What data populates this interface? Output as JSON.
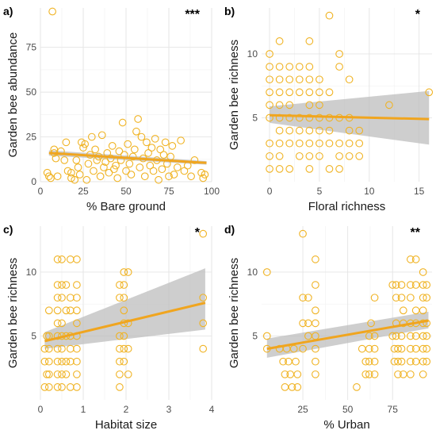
{
  "chart_data": [
    {
      "panel": "a)",
      "type": "scatter",
      "xlabel": "% Bare ground",
      "ylabel": "Garden bee abundance",
      "xlim": [
        0,
        100
      ],
      "ylim": [
        0,
        97
      ],
      "xticks": [
        0,
        25,
        50,
        75,
        100
      ],
      "yticks": [
        0,
        25,
        50,
        75
      ],
      "significance": "***",
      "trend": {
        "x": [
          5,
          97
        ],
        "y": [
          16,
          10.5
        ],
        "ci_low": [
          14.5,
          9.5
        ],
        "ci_high": [
          17.5,
          11.5
        ]
      },
      "points": [
        [
          7,
          95
        ],
        [
          4,
          5
        ],
        [
          5,
          3
        ],
        [
          6,
          2
        ],
        [
          8,
          16
        ],
        [
          8,
          18
        ],
        [
          9,
          13
        ],
        [
          10,
          3
        ],
        [
          12,
          17
        ],
        [
          14,
          12
        ],
        [
          15,
          22
        ],
        [
          16,
          6
        ],
        [
          18,
          5
        ],
        [
          18,
          2
        ],
        [
          20,
          1
        ],
        [
          21,
          12
        ],
        [
          22,
          8
        ],
        [
          23,
          4
        ],
        [
          24,
          22
        ],
        [
          25,
          19
        ],
        [
          26,
          21
        ],
        [
          27,
          1
        ],
        [
          28,
          10
        ],
        [
          29,
          15
        ],
        [
          30,
          25
        ],
        [
          31,
          6
        ],
        [
          32,
          18
        ],
        [
          33,
          12
        ],
        [
          34,
          14
        ],
        [
          35,
          3
        ],
        [
          36,
          26
        ],
        [
          37,
          8
        ],
        [
          38,
          11
        ],
        [
          39,
          16
        ],
        [
          40,
          5
        ],
        [
          41,
          13
        ],
        [
          42,
          20
        ],
        [
          43,
          7
        ],
        [
          44,
          9
        ],
        [
          45,
          2
        ],
        [
          46,
          17
        ],
        [
          47,
          12
        ],
        [
          48,
          33
        ],
        [
          49,
          15
        ],
        [
          50,
          6
        ],
        [
          51,
          21
        ],
        [
          52,
          10
        ],
        [
          53,
          4
        ],
        [
          54,
          14
        ],
        [
          55,
          18
        ],
        [
          56,
          28
        ],
        [
          57,
          35
        ],
        [
          58,
          8
        ],
        [
          59,
          25
        ],
        [
          60,
          13
        ],
        [
          61,
          3
        ],
        [
          62,
          22
        ],
        [
          63,
          16
        ],
        [
          64,
          9
        ],
        [
          65,
          19
        ],
        [
          66,
          6
        ],
        [
          67,
          24
        ],
        [
          68,
          12
        ],
        [
          69,
          1
        ],
        [
          70,
          18
        ],
        [
          71,
          7
        ],
        [
          72,
          15
        ],
        [
          73,
          22
        ],
        [
          74,
          10
        ],
        [
          75,
          3
        ],
        [
          76,
          14
        ],
        [
          77,
          20
        ],
        [
          78,
          4
        ],
        [
          80,
          8
        ],
        [
          82,
          23
        ],
        [
          84,
          6
        ],
        [
          86,
          9
        ],
        [
          88,
          3
        ],
        [
          90,
          12
        ],
        [
          94,
          5
        ],
        [
          95,
          2
        ],
        [
          96,
          4
        ]
      ]
    },
    {
      "panel": "b)",
      "type": "scatter",
      "xlabel": "Floral richness",
      "ylabel": "Garden bee richness",
      "xlim": [
        -0.8,
        16.3
      ],
      "ylim": [
        0,
        13.6
      ],
      "xticks": [
        0,
        5,
        10,
        15
      ],
      "yticks": [
        5,
        10
      ],
      "significance": "*",
      "trend": {
        "x": [
          0,
          16
        ],
        "y": [
          5.2,
          4.9
        ],
        "ci_low": [
          4.6,
          2.9
        ],
        "ci_high": [
          5.9,
          7.1
        ]
      },
      "points": [
        [
          0,
          10
        ],
        [
          0,
          9
        ],
        [
          0,
          8
        ],
        [
          0,
          7
        ],
        [
          0,
          6
        ],
        [
          0,
          5
        ],
        [
          0,
          3
        ],
        [
          0,
          2
        ],
        [
          0,
          1
        ],
        [
          1,
          11
        ],
        [
          1,
          9
        ],
        [
          1,
          8
        ],
        [
          1,
          7
        ],
        [
          1,
          6
        ],
        [
          1,
          5
        ],
        [
          1,
          4
        ],
        [
          1,
          3
        ],
        [
          1,
          2
        ],
        [
          1,
          1
        ],
        [
          2,
          9
        ],
        [
          2,
          8
        ],
        [
          2,
          7
        ],
        [
          2,
          6
        ],
        [
          2,
          5
        ],
        [
          2,
          4
        ],
        [
          2,
          3
        ],
        [
          2,
          1
        ],
        [
          3,
          9
        ],
        [
          3,
          8
        ],
        [
          3,
          7
        ],
        [
          3,
          5
        ],
        [
          3,
          4
        ],
        [
          3,
          3
        ],
        [
          3,
          2
        ],
        [
          4,
          11
        ],
        [
          4,
          9
        ],
        [
          4,
          8
        ],
        [
          4,
          7
        ],
        [
          4,
          6
        ],
        [
          4,
          5
        ],
        [
          4,
          4
        ],
        [
          4,
          3
        ],
        [
          4,
          2
        ],
        [
          4,
          1
        ],
        [
          5,
          8
        ],
        [
          5,
          7
        ],
        [
          5,
          6
        ],
        [
          5,
          5
        ],
        [
          5,
          4
        ],
        [
          5,
          3
        ],
        [
          5,
          2
        ],
        [
          6,
          13
        ],
        [
          6,
          7
        ],
        [
          6,
          5
        ],
        [
          6,
          4
        ],
        [
          6,
          3
        ],
        [
          6,
          1
        ],
        [
          7,
          10
        ],
        [
          7,
          9
        ],
        [
          7,
          5
        ],
        [
          7,
          3
        ],
        [
          7,
          2
        ],
        [
          7,
          1
        ],
        [
          8,
          8
        ],
        [
          8,
          5
        ],
        [
          8,
          4
        ],
        [
          8,
          3
        ],
        [
          8,
          2
        ],
        [
          9,
          4
        ],
        [
          9,
          3
        ],
        [
          9,
          2
        ],
        [
          12,
          6
        ],
        [
          16,
          7
        ]
      ]
    },
    {
      "panel": "c)",
      "type": "scatter",
      "xlabel": "Habitat size",
      "ylabel": "Garden bee richness",
      "xlim": [
        0,
        4
      ],
      "ylim": [
        0,
        13.6
      ],
      "xticks": [
        0,
        1,
        2,
        3,
        4
      ],
      "yticks": [
        5,
        10
      ],
      "significance": "*",
      "trend": {
        "x": [
          0.1,
          3.85
        ],
        "y": [
          4.6,
          7.6
        ],
        "ci_low": [
          4.0,
          5.5
        ],
        "ci_high": [
          5.3,
          10.3
        ]
      },
      "points": [
        [
          0.1,
          4
        ],
        [
          0.1,
          3
        ],
        [
          0.1,
          1
        ],
        [
          0.15,
          2
        ],
        [
          0.15,
          5
        ],
        [
          0.2,
          7
        ],
        [
          0.2,
          5
        ],
        [
          0.2,
          4
        ],
        [
          0.2,
          3
        ],
        [
          0.2,
          2
        ],
        [
          0.2,
          1
        ],
        [
          0.4,
          11
        ],
        [
          0.4,
          9
        ],
        [
          0.4,
          8
        ],
        [
          0.4,
          7
        ],
        [
          0.4,
          6
        ],
        [
          0.4,
          5
        ],
        [
          0.4,
          4
        ],
        [
          0.4,
          3
        ],
        [
          0.4,
          2
        ],
        [
          0.4,
          1
        ],
        [
          0.5,
          11
        ],
        [
          0.5,
          9
        ],
        [
          0.5,
          8
        ],
        [
          0.5,
          6
        ],
        [
          0.5,
          5
        ],
        [
          0.5,
          4
        ],
        [
          0.5,
          3
        ],
        [
          0.5,
          2
        ],
        [
          0.5,
          1
        ],
        [
          0.6,
          9
        ],
        [
          0.6,
          7
        ],
        [
          0.6,
          5
        ],
        [
          0.6,
          3
        ],
        [
          0.6,
          2
        ],
        [
          0.7,
          11
        ],
        [
          0.7,
          8
        ],
        [
          0.7,
          7
        ],
        [
          0.7,
          5
        ],
        [
          0.7,
          4
        ],
        [
          0.7,
          3
        ],
        [
          0.7,
          1
        ],
        [
          0.85,
          11
        ],
        [
          0.85,
          9
        ],
        [
          0.85,
          8
        ],
        [
          0.85,
          7
        ],
        [
          0.85,
          6
        ],
        [
          0.85,
          5
        ],
        [
          0.85,
          4
        ],
        [
          0.85,
          3
        ],
        [
          0.85,
          2
        ],
        [
          0.85,
          1
        ],
        [
          1.85,
          9
        ],
        [
          1.85,
          8
        ],
        [
          1.85,
          5
        ],
        [
          1.85,
          4
        ],
        [
          1.85,
          3
        ],
        [
          1.85,
          2
        ],
        [
          1.85,
          1
        ],
        [
          1.95,
          10
        ],
        [
          1.95,
          9
        ],
        [
          1.95,
          8
        ],
        [
          1.95,
          7
        ],
        [
          1.95,
          6
        ],
        [
          1.95,
          5
        ],
        [
          1.95,
          4
        ],
        [
          1.95,
          3
        ],
        [
          2.05,
          10
        ],
        [
          2.05,
          6
        ],
        [
          2.05,
          4
        ],
        [
          2.05,
          2
        ],
        [
          3.8,
          13
        ],
        [
          3.8,
          8
        ],
        [
          3.8,
          6
        ],
        [
          3.8,
          4
        ]
      ]
    },
    {
      "panel": "d)",
      "type": "scatter",
      "xlabel": "% Urban",
      "ylabel": "Garden bee richness",
      "xlim": [
        2,
        97
      ],
      "ylim": [
        0,
        13.6
      ],
      "xticks": [
        25,
        50,
        75
      ],
      "yticks": [
        5,
        10
      ],
      "significance": "**",
      "trend": {
        "x": [
          5,
          95
        ],
        "y": [
          4.0,
          6.2
        ],
        "ci_low": [
          3.3,
          5.6
        ],
        "ci_high": [
          4.8,
          6.9
        ]
      },
      "points": [
        [
          5,
          10
        ],
        [
          5,
          5
        ],
        [
          5,
          4
        ],
        [
          12,
          4
        ],
        [
          14,
          3
        ],
        [
          15,
          2
        ],
        [
          15,
          1
        ],
        [
          16,
          4
        ],
        [
          17,
          3
        ],
        [
          18,
          2
        ],
        [
          19,
          1
        ],
        [
          20,
          4
        ],
        [
          21,
          3
        ],
        [
          22,
          2
        ],
        [
          22,
          1
        ],
        [
          25,
          13
        ],
        [
          25,
          8
        ],
        [
          25,
          6
        ],
        [
          25,
          4
        ],
        [
          28,
          8
        ],
        [
          28,
          6
        ],
        [
          28,
          5
        ],
        [
          32,
          11
        ],
        [
          32,
          9
        ],
        [
          32,
          7
        ],
        [
          32,
          6
        ],
        [
          32,
          5
        ],
        [
          32,
          4
        ],
        [
          32,
          3
        ],
        [
          32,
          2
        ],
        [
          55,
          1
        ],
        [
          58,
          4
        ],
        [
          60,
          3
        ],
        [
          60,
          2
        ],
        [
          62,
          5
        ],
        [
          62,
          4
        ],
        [
          62,
          3
        ],
        [
          62,
          2
        ],
        [
          63,
          6
        ],
        [
          65,
          8
        ],
        [
          65,
          5
        ],
        [
          65,
          4
        ],
        [
          65,
          3
        ],
        [
          65,
          2
        ],
        [
          75,
          9
        ],
        [
          75,
          5
        ],
        [
          76,
          4
        ],
        [
          76,
          3
        ],
        [
          77,
          9
        ],
        [
          77,
          8
        ],
        [
          77,
          6
        ],
        [
          77,
          5
        ],
        [
          78,
          4
        ],
        [
          78,
          3
        ],
        [
          78,
          2
        ],
        [
          80,
          9
        ],
        [
          80,
          8
        ],
        [
          80,
          5
        ],
        [
          80,
          4
        ],
        [
          80,
          3
        ],
        [
          81,
          7
        ],
        [
          81,
          6
        ],
        [
          81,
          2
        ],
        [
          85,
          11
        ],
        [
          85,
          9
        ],
        [
          85,
          8
        ],
        [
          85,
          6
        ],
        [
          85,
          5
        ],
        [
          85,
          4
        ],
        [
          85,
          3
        ],
        [
          85,
          2
        ],
        [
          88,
          11
        ],
        [
          88,
          9
        ],
        [
          88,
          7
        ],
        [
          88,
          6
        ],
        [
          88,
          5
        ],
        [
          88,
          4
        ],
        [
          88,
          3
        ],
        [
          92,
          10
        ],
        [
          92,
          9
        ],
        [
          92,
          8
        ],
        [
          92,
          7
        ],
        [
          92,
          6
        ],
        [
          92,
          5
        ],
        [
          92,
          4
        ],
        [
          92,
          3
        ],
        [
          92,
          2
        ],
        [
          94,
          9
        ],
        [
          94,
          8
        ],
        [
          94,
          6
        ],
        [
          94,
          5
        ],
        [
          94,
          4
        ],
        [
          94,
          3
        ]
      ]
    }
  ]
}
